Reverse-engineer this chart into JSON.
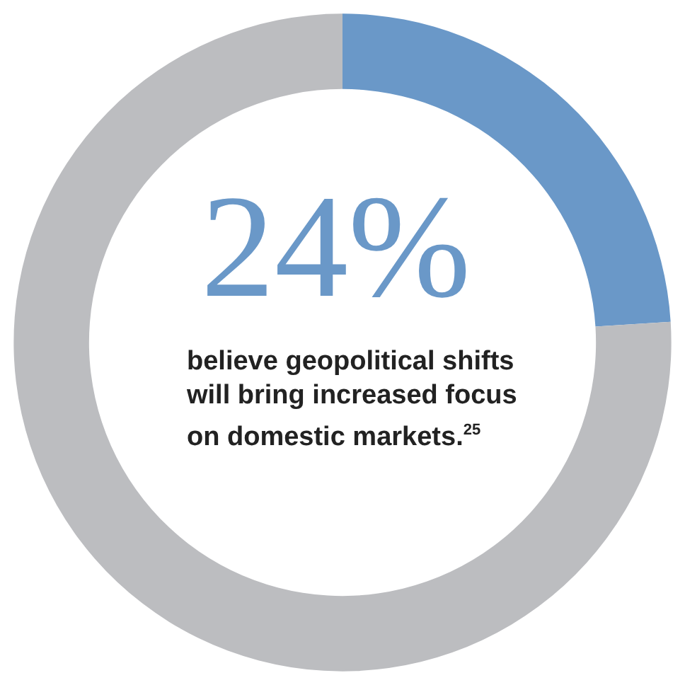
{
  "chart_data": {
    "type": "donut",
    "categories": [
      null,
      null
    ],
    "values": [
      24,
      76
    ],
    "colors": [
      "#6a98c8",
      "#bcbdc0"
    ],
    "value_labels": [
      "24%",
      null
    ],
    "annotations": [
      "believe geopolitical shifts will bring increased focus on domestic markets.$^{25}$"
    ]
  }
}
